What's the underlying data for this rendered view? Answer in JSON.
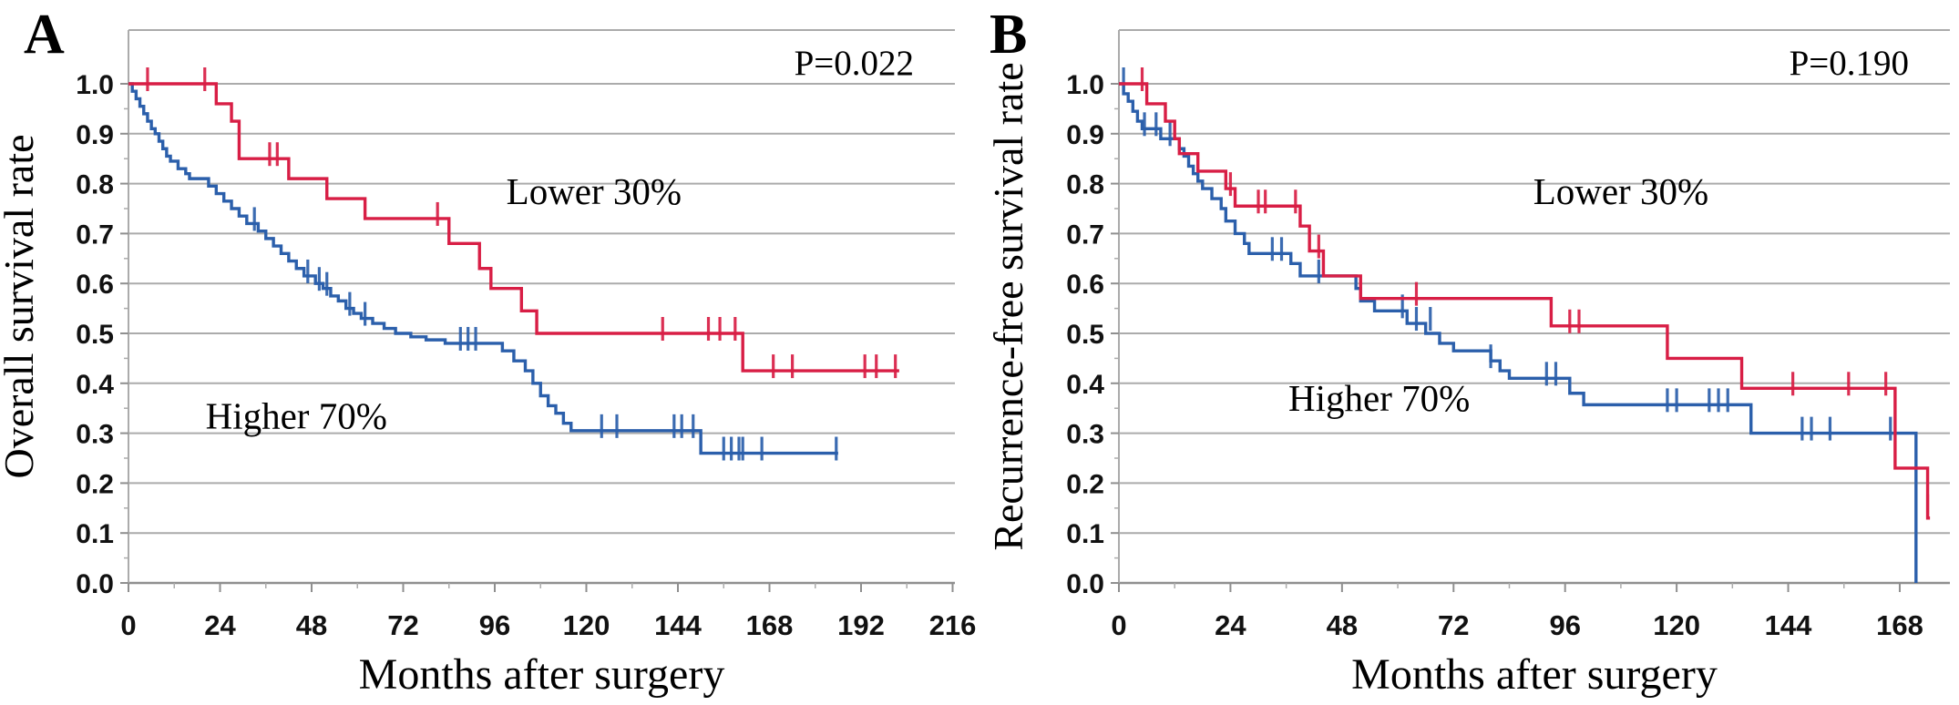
{
  "palette": {
    "lower30_red": "#d81e45",
    "higher70_blue": "#2b5fab",
    "gridline": "#ababab",
    "axis_line": "#8f8f8f",
    "tick_text": "#111111",
    "label_text": "#000000",
    "background": "#ffffff"
  },
  "chart_data": [
    {
      "type": "line",
      "subtype": "kaplan-meier-step",
      "panel_label": "A",
      "p_value": "P=0.022",
      "ylabel": "Overall survival rate",
      "xlabel": "Months after surgery",
      "x_ticks": [
        0,
        24,
        48,
        72,
        96,
        120,
        144,
        168,
        192,
        216
      ],
      "x_minor_step": 12,
      "xlim": [
        0,
        216.5
      ],
      "ylim": [
        0.0,
        1.0
      ],
      "y_tick_step": 0.1,
      "y_tick_labels": [
        "0.0",
        "0.1",
        "0.2",
        "0.3",
        "0.4",
        "0.5",
        "0.6",
        "0.7",
        "0.8",
        "0.9",
        "1.0"
      ],
      "grid": true,
      "legend_position": "inline-annotations",
      "series": [
        {
          "name": "Higher 70%",
          "color": "#2b5fab",
          "label_anchor": {
            "month": 44,
            "value": 0.335
          },
          "steps": [
            [
              0,
              1.0
            ],
            [
              1,
              0.985
            ],
            [
              2,
              0.97
            ],
            [
              3,
              0.955
            ],
            [
              4,
              0.94
            ],
            [
              5,
              0.925
            ],
            [
              6,
              0.91
            ],
            [
              7,
              0.9
            ],
            [
              8,
              0.885
            ],
            [
              9,
              0.87
            ],
            [
              10,
              0.855
            ],
            [
              11,
              0.845
            ],
            [
              13,
              0.83
            ],
            [
              15,
              0.82
            ],
            [
              16,
              0.81
            ],
            [
              21,
              0.795
            ],
            [
              23,
              0.78
            ],
            [
              25,
              0.765
            ],
            [
              27,
              0.75
            ],
            [
              29,
              0.735
            ],
            [
              31,
              0.72
            ],
            [
              34,
              0.705
            ],
            [
              36,
              0.69
            ],
            [
              38,
              0.675
            ],
            [
              40,
              0.66
            ],
            [
              42,
              0.645
            ],
            [
              44,
              0.63
            ],
            [
              46,
              0.615
            ],
            [
              49,
              0.6
            ],
            [
              51,
              0.59
            ],
            [
              53,
              0.575
            ],
            [
              55,
              0.565
            ],
            [
              57,
              0.55
            ],
            [
              59,
              0.54
            ],
            [
              61,
              0.53
            ],
            [
              64,
              0.52
            ],
            [
              67,
              0.51
            ],
            [
              70,
              0.5
            ],
            [
              74,
              0.493
            ],
            [
              78,
              0.487
            ],
            [
              83,
              0.48
            ],
            [
              98,
              0.465
            ],
            [
              101,
              0.445
            ],
            [
              104,
              0.425
            ],
            [
              106,
              0.4
            ],
            [
              108,
              0.375
            ],
            [
              110,
              0.355
            ],
            [
              112,
              0.34
            ],
            [
              114,
              0.32
            ],
            [
              116,
              0.305
            ],
            [
              150,
              0.26
            ]
          ],
          "censors": [
            [
              33,
              0.72
            ],
            [
              47,
              0.615
            ],
            [
              50,
              0.6
            ],
            [
              52,
              0.59
            ],
            [
              58,
              0.55
            ],
            [
              62,
              0.53
            ],
            [
              87,
              0.48
            ],
            [
              89,
              0.48
            ],
            [
              91,
              0.48
            ],
            [
              124,
              0.305
            ],
            [
              128,
              0.305
            ],
            [
              143,
              0.305
            ],
            [
              145,
              0.305
            ],
            [
              148,
              0.305
            ],
            [
              156,
              0.26
            ],
            [
              158,
              0.26
            ],
            [
              160,
              0.26
            ],
            [
              161,
              0.26
            ],
            [
              166,
              0.26
            ],
            [
              185.5,
              0.26
            ]
          ],
          "end_month": 186
        },
        {
          "name": "Lower 30%",
          "color": "#d81e45",
          "label_anchor": {
            "month": 122,
            "value": 0.785
          },
          "steps": [
            [
              0,
              1.0
            ],
            [
              23,
              0.96
            ],
            [
              27,
              0.925
            ],
            [
              29,
              0.85
            ],
            [
              42,
              0.81
            ],
            [
              52,
              0.77
            ],
            [
              62,
              0.73
            ],
            [
              84,
              0.68
            ],
            [
              92,
              0.63
            ],
            [
              95,
              0.59
            ],
            [
              103,
              0.545
            ],
            [
              107,
              0.5
            ],
            [
              161,
              0.425
            ]
          ],
          "censors": [
            [
              5,
              1.0
            ],
            [
              20,
              1.0
            ],
            [
              37,
              0.85
            ],
            [
              39,
              0.85
            ],
            [
              81,
              0.73
            ],
            [
              140,
              0.5
            ],
            [
              152,
              0.5
            ],
            [
              155,
              0.5
            ],
            [
              159,
              0.5
            ],
            [
              169,
              0.425
            ],
            [
              174,
              0.425
            ],
            [
              193,
              0.425
            ],
            [
              196,
              0.425
            ],
            [
              201,
              0.425
            ]
          ],
          "end_month": 202
        }
      ]
    },
    {
      "type": "line",
      "subtype": "kaplan-meier-step",
      "panel_label": "B",
      "p_value": "P=0.190",
      "ylabel": "Recurrence-free survival rate",
      "xlabel": "Months after surgery",
      "x_ticks": [
        0,
        24,
        48,
        72,
        96,
        120,
        144,
        168
      ],
      "x_minor_step": 12,
      "xlim": [
        0,
        178.5
      ],
      "ylim": [
        0.0,
        1.0
      ],
      "y_tick_step": 0.1,
      "y_tick_labels": [
        "0.0",
        "0.1",
        "0.2",
        "0.3",
        "0.4",
        "0.5",
        "0.6",
        "0.7",
        "0.8",
        "0.9",
        "1.0"
      ],
      "grid": true,
      "legend_position": "inline-annotations",
      "series": [
        {
          "name": "Higher 70%",
          "color": "#2b5fab",
          "label_anchor": {
            "month": 56,
            "value": 0.37
          },
          "steps": [
            [
              0,
              1.0
            ],
            [
              1,
              0.98
            ],
            [
              2,
              0.965
            ],
            [
              3,
              0.945
            ],
            [
              4,
              0.925
            ],
            [
              5,
              0.91
            ],
            [
              9,
              0.89
            ],
            [
              13,
              0.87
            ],
            [
              14,
              0.855
            ],
            [
              15,
              0.835
            ],
            [
              16,
              0.82
            ],
            [
              17,
              0.805
            ],
            [
              18,
              0.79
            ],
            [
              20,
              0.77
            ],
            [
              22,
              0.75
            ],
            [
              23,
              0.725
            ],
            [
              25,
              0.7
            ],
            [
              27,
              0.68
            ],
            [
              28,
              0.66
            ],
            [
              37,
              0.64
            ],
            [
              39,
              0.615
            ],
            [
              51,
              0.59
            ],
            [
              52,
              0.565
            ],
            [
              55,
              0.545
            ],
            [
              62,
              0.52
            ],
            [
              66,
              0.5
            ],
            [
              69,
              0.48
            ],
            [
              72,
              0.465
            ],
            [
              80,
              0.445
            ],
            [
              82,
              0.425
            ],
            [
              84,
              0.41
            ],
            [
              97,
              0.38
            ],
            [
              100,
              0.357
            ],
            [
              136,
              0.3
            ],
            [
              171.5,
              0.0
            ]
          ],
          "censors": [
            [
              1,
              1.0
            ],
            [
              5.5,
              0.91
            ],
            [
              8,
              0.91
            ],
            [
              11,
              0.89
            ],
            [
              33,
              0.66
            ],
            [
              35,
              0.66
            ],
            [
              43,
              0.615
            ],
            [
              61,
              0.545
            ],
            [
              64,
              0.52
            ],
            [
              67,
              0.52
            ],
            [
              80,
              0.445
            ],
            [
              92,
              0.41
            ],
            [
              94,
              0.41
            ],
            [
              118,
              0.357
            ],
            [
              120,
              0.357
            ],
            [
              127,
              0.357
            ],
            [
              129,
              0.357
            ],
            [
              131,
              0.357
            ],
            [
              147,
              0.3
            ],
            [
              149,
              0.3
            ],
            [
              153,
              0.3
            ],
            [
              166,
              0.3
            ]
          ],
          "end_month": 171.5
        },
        {
          "name": "Lower 30%",
          "color": "#d81e45",
          "label_anchor": {
            "month": 108,
            "value": 0.785
          },
          "steps": [
            [
              0,
              1.0
            ],
            [
              6,
              0.96
            ],
            [
              10,
              0.925
            ],
            [
              12,
              0.89
            ],
            [
              13,
              0.86
            ],
            [
              17,
              0.825
            ],
            [
              23,
              0.79
            ],
            [
              25,
              0.755
            ],
            [
              39,
              0.715
            ],
            [
              41,
              0.665
            ],
            [
              44,
              0.615
            ],
            [
              52,
              0.57
            ],
            [
              93,
              0.515
            ],
            [
              118,
              0.45
            ],
            [
              134,
              0.39
            ],
            [
              167,
              0.23
            ],
            [
              174,
              0.13
            ]
          ],
          "censors": [
            [
              5,
              1.0
            ],
            [
              24,
              0.79
            ],
            [
              30,
              0.755
            ],
            [
              31.5,
              0.755
            ],
            [
              38,
              0.755
            ],
            [
              43,
              0.665
            ],
            [
              64,
              0.57
            ],
            [
              97,
              0.515
            ],
            [
              99,
              0.515
            ],
            [
              145,
              0.39
            ],
            [
              157,
              0.39
            ],
            [
              165,
              0.39
            ],
            [
              174,
              0.145
            ]
          ],
          "end_month": 174.5
        }
      ]
    }
  ]
}
